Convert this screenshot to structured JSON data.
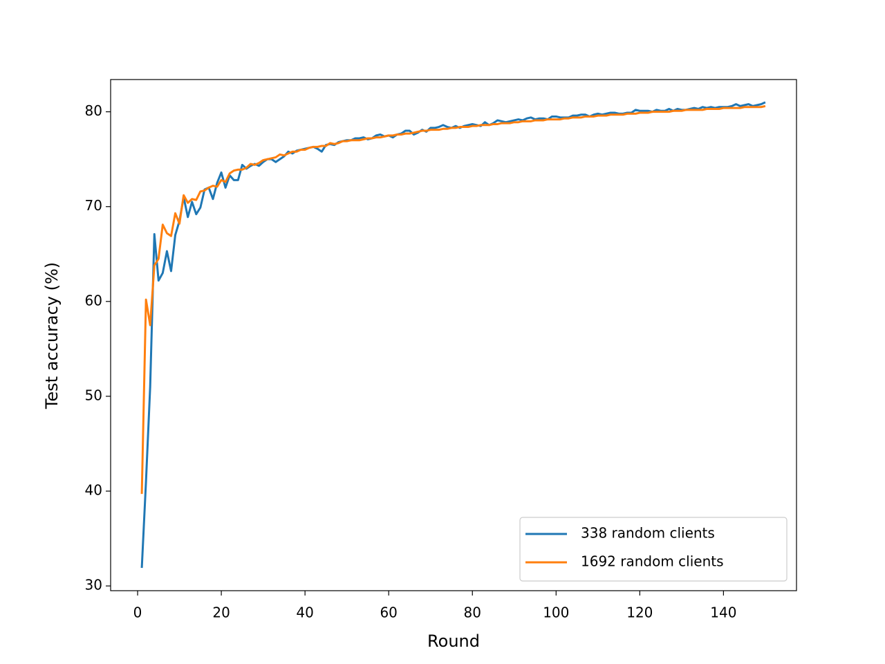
{
  "chart_data": {
    "type": "line",
    "xlabel": "Round",
    "ylabel": "Test accuracy (%)",
    "x": [
      1,
      2,
      3,
      4,
      5,
      6,
      7,
      8,
      9,
      10,
      11,
      12,
      13,
      14,
      15,
      16,
      17,
      18,
      19,
      20,
      21,
      22,
      23,
      24,
      25,
      26,
      27,
      28,
      29,
      30,
      31,
      32,
      33,
      34,
      35,
      36,
      37,
      38,
      39,
      40,
      41,
      42,
      43,
      44,
      45,
      46,
      47,
      48,
      49,
      50,
      51,
      52,
      53,
      54,
      55,
      56,
      57,
      58,
      59,
      60,
      61,
      62,
      63,
      64,
      65,
      66,
      67,
      68,
      69,
      70,
      71,
      72,
      73,
      74,
      75,
      76,
      77,
      78,
      79,
      80,
      81,
      82,
      83,
      84,
      85,
      86,
      87,
      88,
      89,
      90,
      91,
      92,
      93,
      94,
      95,
      96,
      97,
      98,
      99,
      100,
      101,
      102,
      103,
      104,
      105,
      106,
      107,
      108,
      109,
      110,
      111,
      112,
      113,
      114,
      115,
      116,
      117,
      118,
      119,
      120,
      121,
      122,
      123,
      124,
      125,
      126,
      127,
      128,
      129,
      130,
      131,
      132,
      133,
      134,
      135,
      136,
      137,
      138,
      139,
      140,
      141,
      142,
      143,
      144,
      145,
      146,
      147,
      148,
      149,
      150
    ],
    "series": [
      {
        "name": "338 random clients",
        "color": "#1f77b4",
        "values": [
          31.9,
          41,
          51,
          67.1,
          62.2,
          63,
          65.3,
          63.2,
          67,
          68.5,
          71,
          68.9,
          70.5,
          69.2,
          69.9,
          71.8,
          72,
          70.8,
          72.5,
          73.6,
          72,
          73.3,
          72.8,
          72.8,
          74.4,
          74,
          74.3,
          74.5,
          74.3,
          74.7,
          75,
          75,
          74.7,
          75,
          75.3,
          75.8,
          75.6,
          75.9,
          76,
          76.1,
          76.2,
          76.3,
          76.1,
          75.8,
          76.5,
          76.6,
          76.5,
          76.8,
          76.9,
          77,
          77,
          77.2,
          77.2,
          77.3,
          77.1,
          77.2,
          77.5,
          77.6,
          77.4,
          77.5,
          77.3,
          77.6,
          77.7,
          78,
          78,
          77.6,
          77.8,
          78.1,
          77.9,
          78.3,
          78.3,
          78.4,
          78.6,
          78.4,
          78.3,
          78.5,
          78.3,
          78.5,
          78.6,
          78.7,
          78.6,
          78.5,
          78.9,
          78.6,
          78.8,
          79.1,
          79,
          78.9,
          79,
          79.1,
          79.2,
          79.1,
          79.3,
          79.4,
          79.2,
          79.3,
          79.3,
          79.2,
          79.5,
          79.5,
          79.4,
          79.4,
          79.4,
          79.6,
          79.6,
          79.7,
          79.7,
          79.5,
          79.7,
          79.8,
          79.7,
          79.8,
          79.9,
          79.9,
          79.8,
          79.8,
          79.9,
          79.9,
          80.2,
          80.1,
          80.1,
          80.1,
          80,
          80.2,
          80.1,
          80.1,
          80.3,
          80.1,
          80.3,
          80.2,
          80.2,
          80.3,
          80.4,
          80.3,
          80.5,
          80.4,
          80.5,
          80.4,
          80.5,
          80.5,
          80.5,
          80.6,
          80.8,
          80.6,
          80.7,
          80.8,
          80.6,
          80.7,
          80.8,
          81.0
        ]
      },
      {
        "name": "1692 random clients",
        "color": "#ff7f0e",
        "values": [
          39.7,
          60.2,
          57.5,
          63.8,
          64.5,
          68.1,
          67.2,
          66.9,
          69.3,
          68.2,
          71.2,
          70.4,
          70.8,
          70.7,
          71.6,
          71.7,
          72,
          72.2,
          72.1,
          72.8,
          72.6,
          73.5,
          73.8,
          73.9,
          73.9,
          74.1,
          74.5,
          74.4,
          74.6,
          74.9,
          75,
          75.1,
          75.2,
          75.5,
          75.4,
          75.6,
          75.8,
          75.8,
          76,
          76,
          76.2,
          76.3,
          76.3,
          76.4,
          76.4,
          76.7,
          76.6,
          76.7,
          76.9,
          76.9,
          77,
          77,
          77,
          77.1,
          77.2,
          77.2,
          77.3,
          77.3,
          77.4,
          77.5,
          77.5,
          77.6,
          77.6,
          77.7,
          77.7,
          77.8,
          77.9,
          78,
          78,
          78.1,
          78.1,
          78.1,
          78.2,
          78.2,
          78.3,
          78.3,
          78.4,
          78.4,
          78.4,
          78.5,
          78.5,
          78.6,
          78.6,
          78.6,
          78.7,
          78.7,
          78.8,
          78.8,
          78.8,
          78.9,
          78.9,
          79,
          79,
          79,
          79.1,
          79.1,
          79.1,
          79.2,
          79.2,
          79.2,
          79.2,
          79.3,
          79.3,
          79.4,
          79.4,
          79.4,
          79.5,
          79.5,
          79.5,
          79.6,
          79.6,
          79.6,
          79.7,
          79.7,
          79.7,
          79.7,
          79.8,
          79.8,
          79.8,
          79.9,
          79.9,
          79.9,
          80,
          80,
          80,
          80,
          80,
          80.1,
          80.1,
          80.1,
          80.2,
          80.2,
          80.2,
          80.2,
          80.2,
          80.3,
          80.3,
          80.3,
          80.3,
          80.4,
          80.4,
          80.4,
          80.4,
          80.4,
          80.5,
          80.5,
          80.5,
          80.5,
          80.5,
          80.6
        ]
      }
    ],
    "xlim": [
      -6.45,
      157.45
    ],
    "ylim": [
      29.5,
      83.4
    ],
    "xticks": [
      0,
      20,
      40,
      60,
      80,
      100,
      120,
      140
    ],
    "yticks": [
      30,
      40,
      50,
      60,
      70,
      80
    ],
    "legend": "lower right"
  }
}
